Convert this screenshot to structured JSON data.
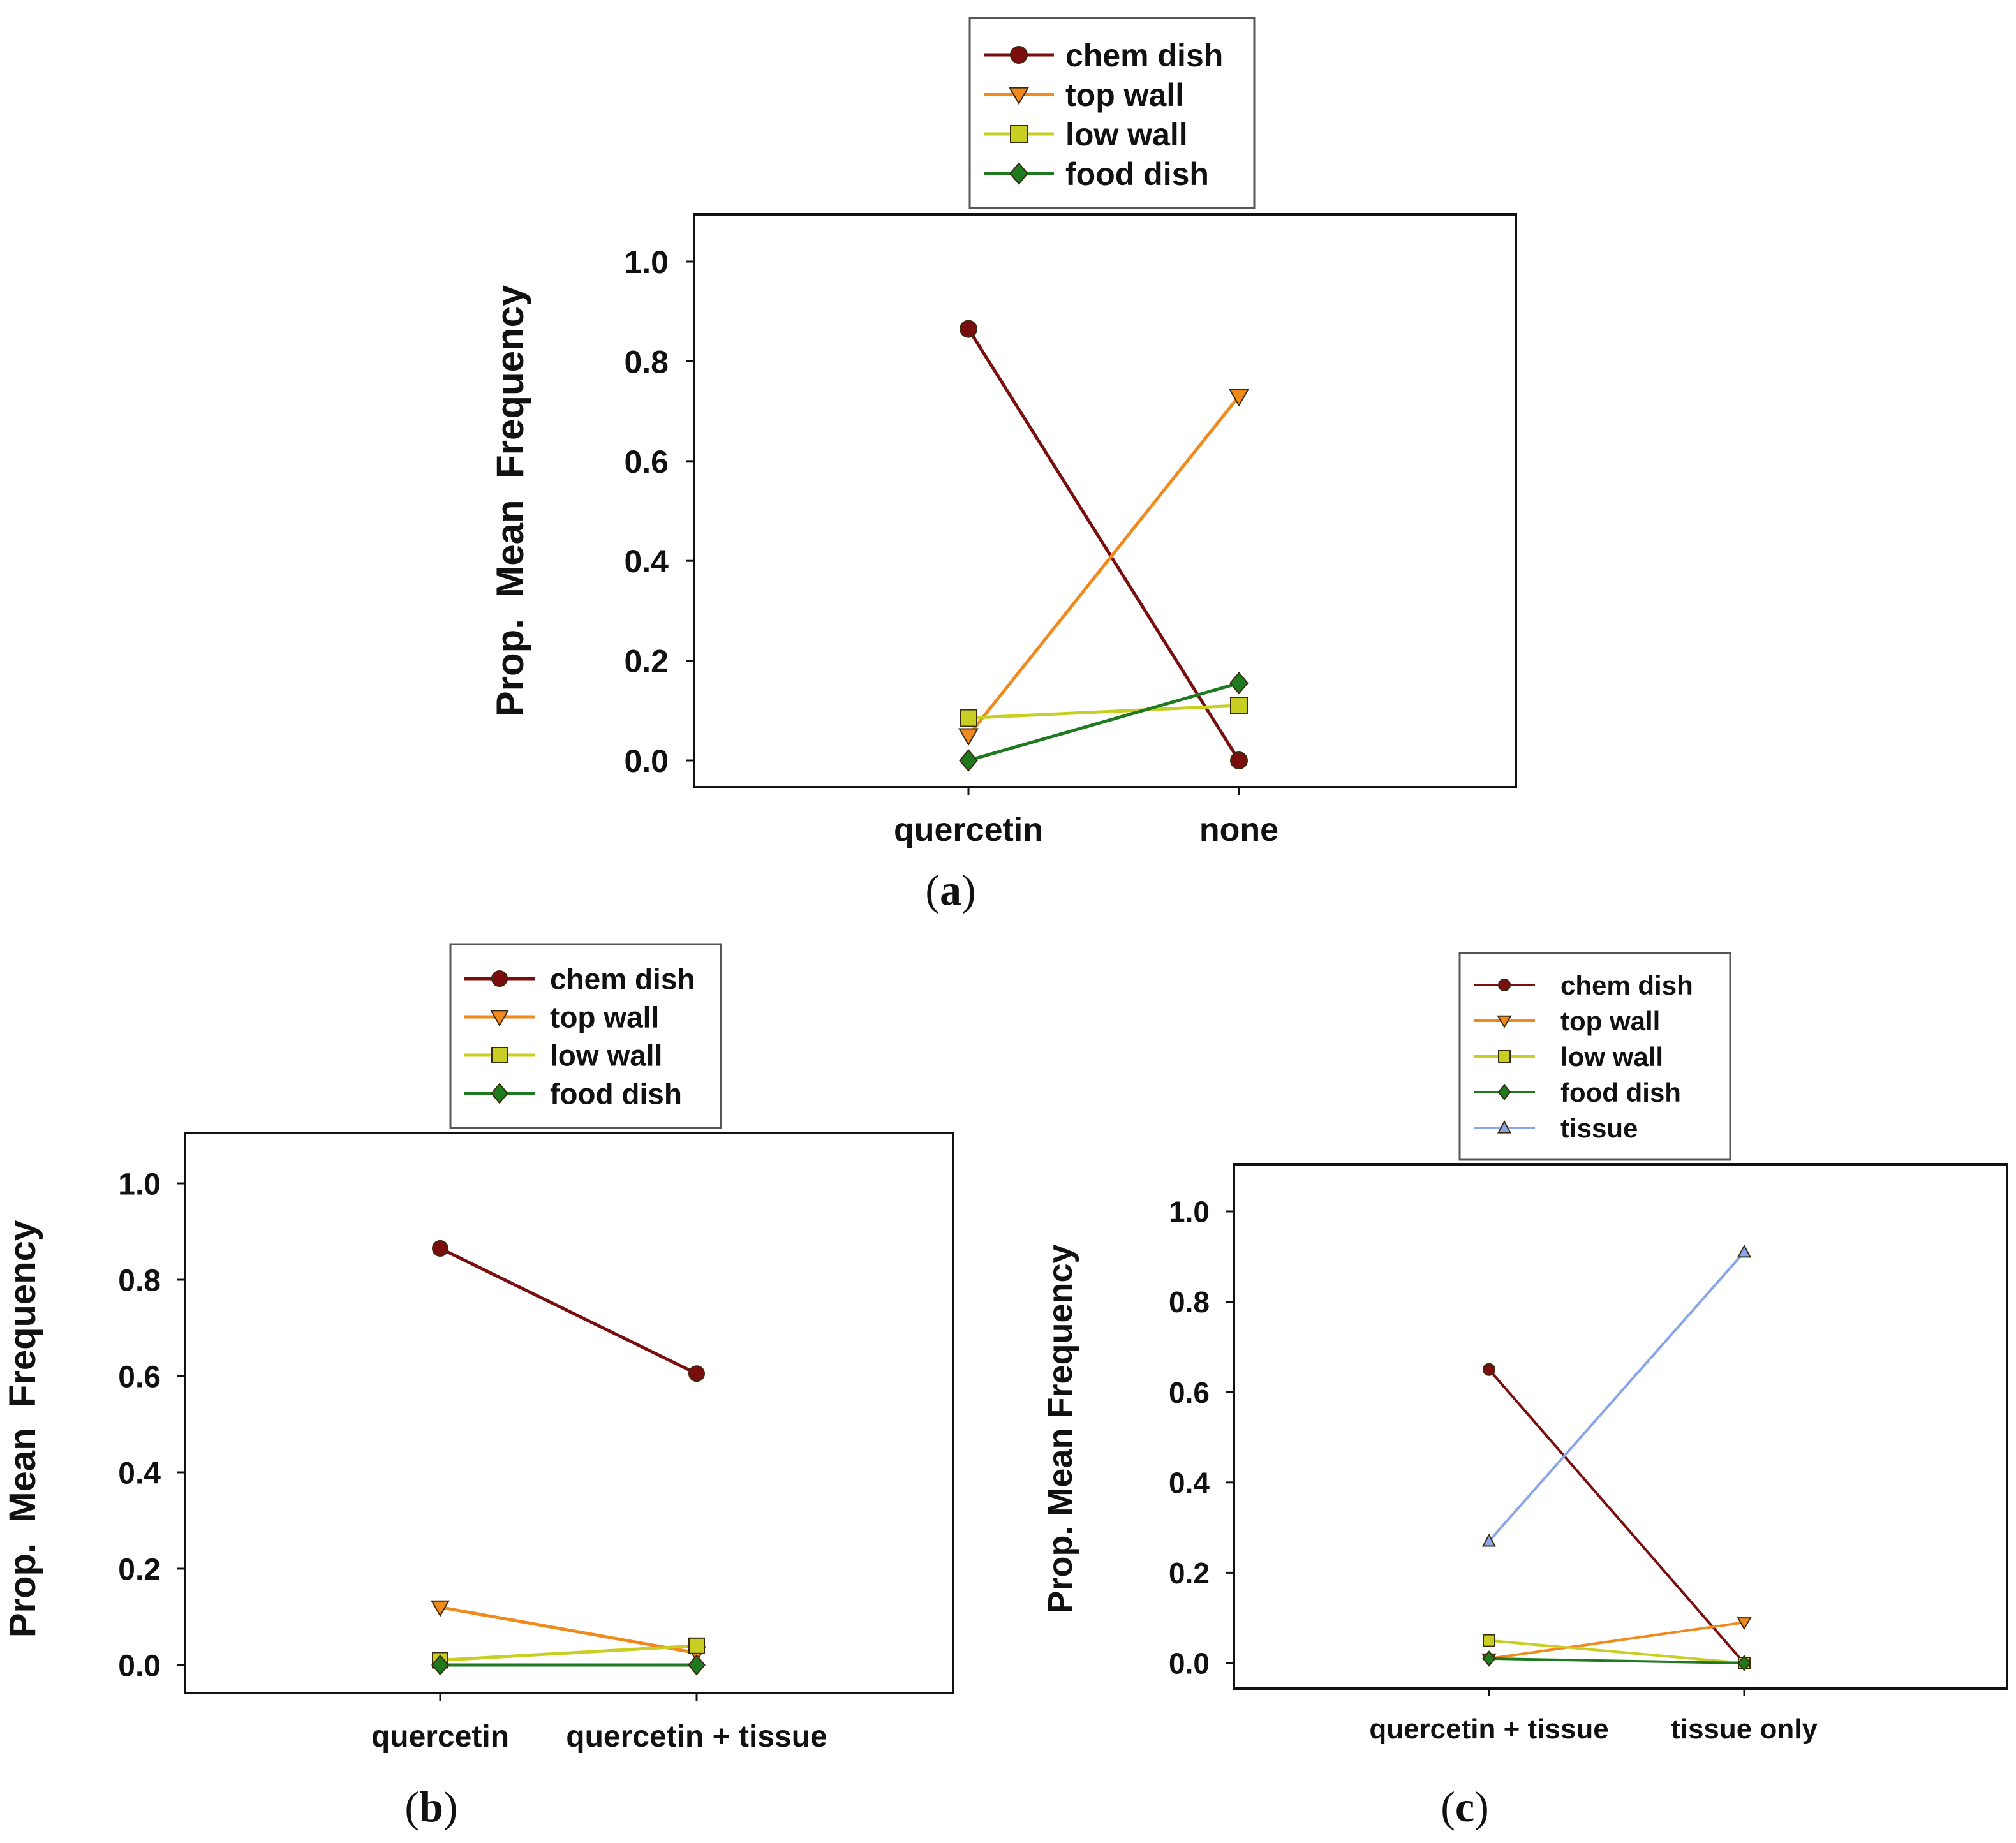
{
  "figure": {
    "background": "#ffffff"
  },
  "series_styles": {
    "chem dish": {
      "color": "#7a0d0d",
      "marker": "circle"
    },
    "top wall": {
      "color": "#f08a1c",
      "marker": "triangle-down"
    },
    "low wall": {
      "color": "#c9cf22",
      "marker": "square"
    },
    "food dish": {
      "color": "#1f7a1f",
      "marker": "diamond"
    },
    "tissue": {
      "color": "#8aa6e8",
      "marker": "triangle-up"
    }
  },
  "chart_data": [
    {
      "id": "a",
      "panel_label": "(a)",
      "type": "line",
      "categories": [
        "quercetin",
        "none"
      ],
      "ylabel": "Prop.  Mean  Frequency",
      "xlabel": "",
      "ylim": [
        0,
        1.1
      ],
      "yticks": [
        "0.0",
        "0.2",
        "0.4",
        "0.6",
        "0.8",
        "1.0"
      ],
      "legend": [
        "chem dish",
        "top wall",
        "low wall",
        "food dish"
      ],
      "legend_position": "top-center",
      "series": [
        {
          "name": "chem dish",
          "values": [
            0.865,
            0.0
          ]
        },
        {
          "name": "top wall",
          "values": [
            0.05,
            0.73
          ]
        },
        {
          "name": "low wall",
          "values": [
            0.085,
            0.11
          ]
        },
        {
          "name": "food dish",
          "values": [
            0.0,
            0.155
          ]
        }
      ]
    },
    {
      "id": "b",
      "panel_label": "(b)",
      "type": "line",
      "categories": [
        "quercetin",
        "quercetin + tissue"
      ],
      "ylabel": "Prop.  Mean  Frequency",
      "xlabel": "",
      "ylim": [
        0,
        1.1
      ],
      "yticks": [
        "0.0",
        "0.2",
        "0.4",
        "0.6",
        "0.8",
        "1.0"
      ],
      "legend": [
        "chem dish",
        "top wall",
        "low wall",
        "food dish"
      ],
      "legend_position": "top-center",
      "series": [
        {
          "name": "chem dish",
          "values": [
            0.865,
            0.605
          ]
        },
        {
          "name": "top wall",
          "values": [
            0.12,
            0.025
          ]
        },
        {
          "name": "low wall",
          "values": [
            0.01,
            0.04
          ]
        },
        {
          "name": "food dish",
          "values": [
            0.0,
            0.0
          ]
        }
      ]
    },
    {
      "id": "c",
      "panel_label": "(c)",
      "type": "line",
      "categories": [
        "quercetin + tissue",
        "tissue only"
      ],
      "ylabel": "Prop. Mean Frequency",
      "xlabel": "",
      "ylim": [
        0,
        1.1
      ],
      "yticks": [
        "0.0",
        "0.2",
        "0.4",
        "0.6",
        "0.8",
        "1.0"
      ],
      "legend": [
        "chem dish",
        "top wall",
        "low wall",
        "food dish",
        "tissue"
      ],
      "legend_position": "top-center",
      "series": [
        {
          "name": "chem dish",
          "values": [
            0.65,
            0.0
          ]
        },
        {
          "name": "top wall",
          "values": [
            0.01,
            0.09
          ]
        },
        {
          "name": "low wall",
          "values": [
            0.05,
            0.0
          ]
        },
        {
          "name": "food dish",
          "values": [
            0.01,
            0.0
          ]
        },
        {
          "name": "tissue",
          "values": [
            0.27,
            0.91
          ]
        }
      ]
    }
  ]
}
